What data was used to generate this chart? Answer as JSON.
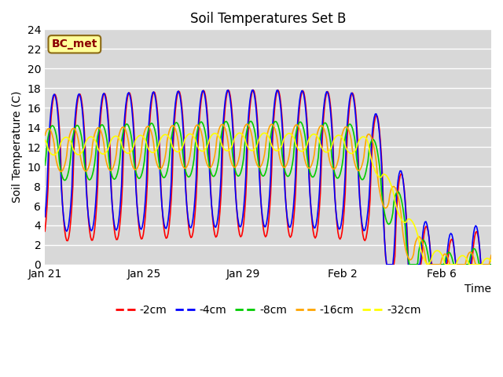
{
  "title": "Soil Temperatures Set B",
  "ylabel": "Soil Temperature (C)",
  "xlabel_right": "Time",
  "ylim": [
    0,
    24
  ],
  "yticks": [
    0,
    2,
    4,
    6,
    8,
    10,
    12,
    14,
    16,
    18,
    20,
    22,
    24
  ],
  "xtick_positions": [
    0,
    4,
    8,
    12,
    16
  ],
  "xtick_labels": [
    "Jan 21",
    "Jan 25",
    "Jan 29",
    "Feb 2",
    "Feb 6"
  ],
  "xlim": [
    0,
    18
  ],
  "annotation_text": "BC_met",
  "annotation_bg": "#FFFF99",
  "annotation_border": "#8B6914",
  "annotation_color": "#8B0000",
  "line_colors": [
    "#FF0000",
    "#0000FF",
    "#00CC00",
    "#FFA500",
    "#FFFF00"
  ],
  "line_labels": [
    "-2cm",
    "-4cm",
    "-8cm",
    "-16cm",
    "-32cm"
  ],
  "line_width": 1.2,
  "bg_color": "#D8D8D8",
  "grid_color": "#FFFFFF",
  "title_fontsize": 12,
  "axis_fontsize": 10,
  "legend_fontsize": 10
}
